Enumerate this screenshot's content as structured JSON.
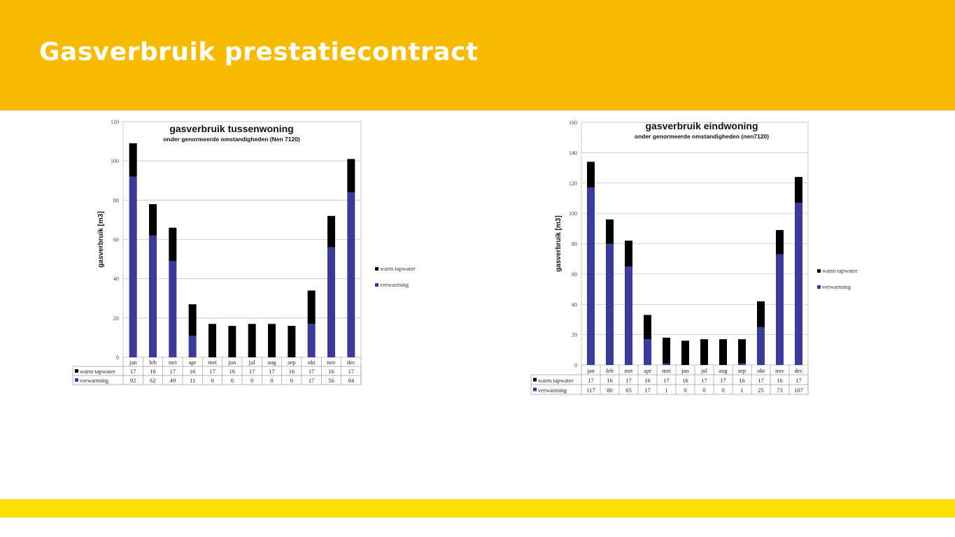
{
  "page": {
    "title": "Gasverbruik prestatiecontract"
  },
  "colors": {
    "header": "#f9bb00",
    "footer": "#ffe100",
    "verwarming": "#3a3a9c",
    "warm_tapwater": "#000000"
  },
  "chart_data": [
    {
      "type": "bar",
      "stacked": true,
      "title": "gasverbruik   tussenwoning",
      "subtitle": "onder genormeerde omstandigheden (Nen 7120)",
      "ylabel": "gasverbruik [m3]",
      "ylim": [
        0,
        120
      ],
      "yticks": [
        0,
        20,
        40,
        60,
        80,
        100,
        120
      ],
      "categories": [
        "jan",
        "feb",
        "mrt",
        "apr",
        "mei",
        "jun",
        "jul",
        "aug",
        "sep",
        "okt",
        "nov",
        "dec"
      ],
      "series": [
        {
          "name": "warm tapwater",
          "values": [
            17,
            16,
            17,
            16,
            17,
            16,
            17,
            17,
            16,
            17,
            16,
            17
          ]
        },
        {
          "name": "verwarming",
          "values": [
            92,
            62,
            49,
            11,
            0,
            0,
            0,
            0,
            0,
            17,
            56,
            84
          ]
        }
      ],
      "legend_position": "right"
    },
    {
      "type": "bar",
      "stacked": true,
      "title": "gasverbruik   eindwoning",
      "subtitle": "onder genormeerde omstandigheden (nen7120)",
      "ylabel": "gasverbruik [m3]",
      "ylim": [
        0,
        160
      ],
      "yticks": [
        0,
        20,
        40,
        60,
        80,
        100,
        120,
        140,
        160
      ],
      "categories": [
        "jan",
        "feb",
        "mrt",
        "apr",
        "mei",
        "jun",
        "jul",
        "aug",
        "sep",
        "okt",
        "nov",
        "dec"
      ],
      "series": [
        {
          "name": "warm tapwater",
          "values": [
            17,
            16,
            17,
            16,
            17,
            16,
            17,
            17,
            16,
            17,
            16,
            17
          ]
        },
        {
          "name": "verwarming",
          "values": [
            117,
            80,
            65,
            17,
            1,
            0,
            0,
            0,
            1,
            25,
            73,
            107
          ]
        }
      ],
      "legend_position": "right"
    }
  ]
}
